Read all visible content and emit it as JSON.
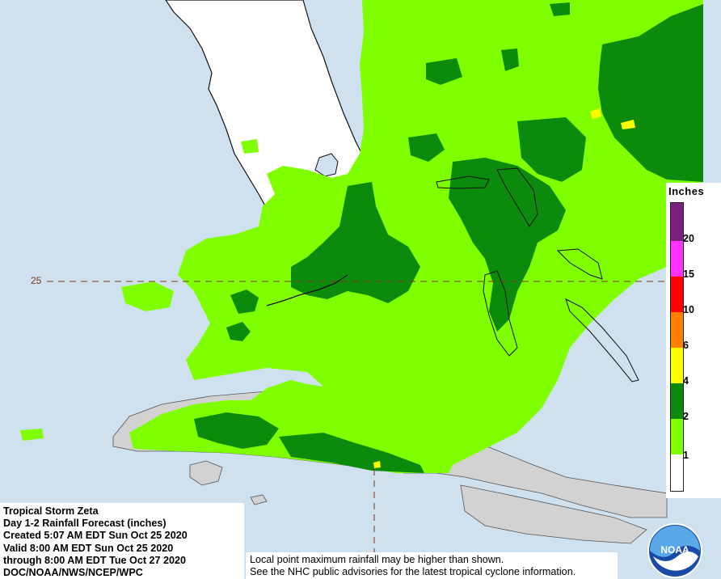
{
  "map": {
    "title": "Tropical Storm Zeta",
    "subtitle": "Day 1-2 Rainfall Forecast (inches)",
    "created": "Created 5:07 AM EDT Sun Oct 25 2020",
    "valid": "Valid 8:00 AM EDT Sun Oct 25 2020",
    "through": "through 8:00 AM EDT Tue Oct 27 2020",
    "source": "DOC/NOAA/NWS/NCEP/WPC",
    "disclaimer_line1": "Local point maximum rainfall may be higher than shown.",
    "disclaimer_line2": "See the NHC public advisories for the latest tropical cyclone information.",
    "latitude_label": "25"
  },
  "legend": {
    "title": "Inches",
    "labels": [
      "20",
      "15",
      "10",
      "6",
      "4",
      "2",
      "1"
    ],
    "colors": {
      "above_20": "#7b1f7f",
      "15_to_20": "#ff33ff",
      "10_to_15": "#ff0000",
      "6_to_10": "#ff8000",
      "4_to_6": "#ffff00",
      "2_to_4": "#0b8a0b",
      "1_to_2": "#80ff00",
      "below_1": "#ffffff"
    }
  },
  "colors": {
    "ocean": "#cfe0ef",
    "land_no_rain": "#d2d2d2",
    "florida_land": "#ffffff",
    "rain_light": "#80ff00",
    "rain_heavy": "#0b8a0b",
    "rain_max": "#ffff00",
    "grid_line": "#7a3b1e"
  },
  "logo": {
    "text": "NOAA",
    "icon": "noaa-logo-icon"
  }
}
